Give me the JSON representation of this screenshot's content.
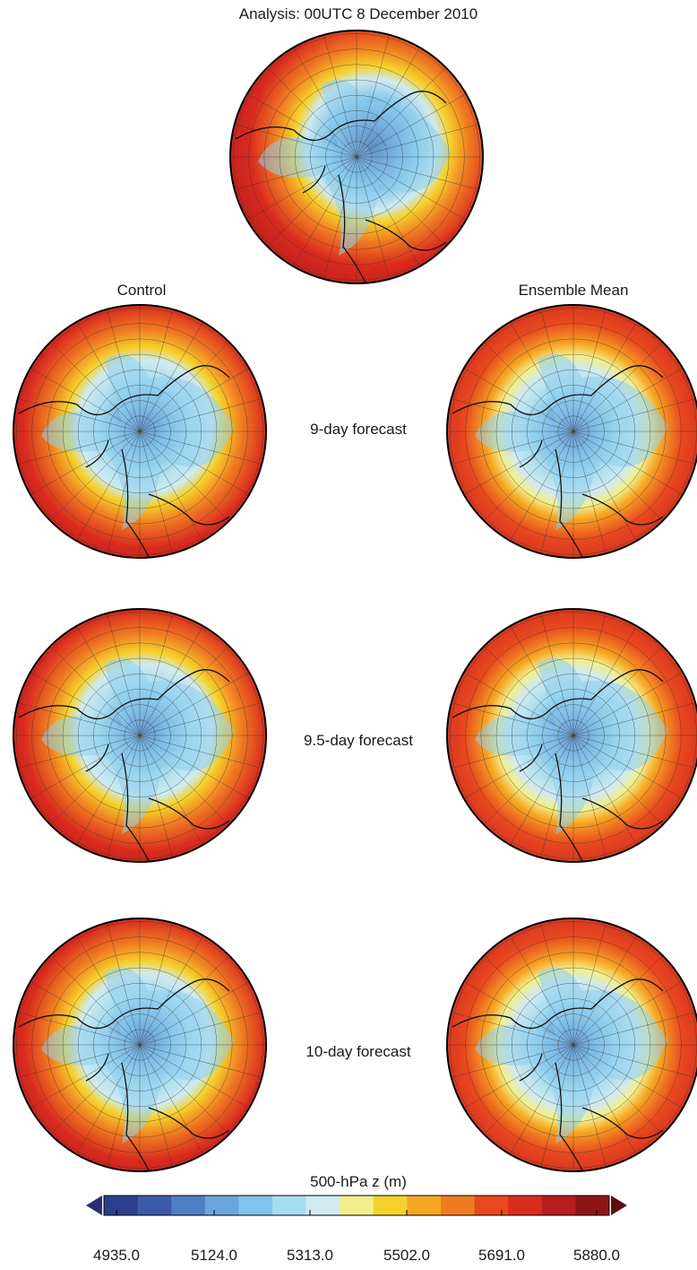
{
  "title": "Analysis: 00UTC 8 December 2010",
  "columns": {
    "left": "Control",
    "right": "Ensemble Mean"
  },
  "rows": [
    {
      "label": "9-day forecast"
    },
    {
      "label": "9.5-day forecast"
    },
    {
      "label": "10-day forecast"
    }
  ],
  "colorbar": {
    "label": "500-hPa z (m)",
    "ticks": [
      "4935.0",
      "5124.0",
      "5313.0",
      "5502.0",
      "5691.0",
      "5880.0"
    ],
    "colors": [
      "#2b3f8c",
      "#3b5aa8",
      "#4f7fc4",
      "#6aa6dc",
      "#7fc4ea",
      "#a6dcf0",
      "#cfeaf0",
      "#f2ee8a",
      "#f5d22a",
      "#f6a623",
      "#f07c22",
      "#e8481f",
      "#d92b1e",
      "#b81c1c",
      "#8f1515"
    ]
  },
  "panels": [
    {
      "name": "analysis",
      "field": "analysis"
    },
    {
      "name": "control-9day",
      "field": "control_9"
    },
    {
      "name": "ensemble-mean-9day",
      "field": "mean_9"
    },
    {
      "name": "control-9.5day",
      "field": "control_95"
    },
    {
      "name": "ensemble-mean-9.5day",
      "field": "mean_95"
    },
    {
      "name": "control-10day",
      "field": "control_10"
    },
    {
      "name": "ensemble-mean-10day",
      "field": "mean_10"
    }
  ]
}
